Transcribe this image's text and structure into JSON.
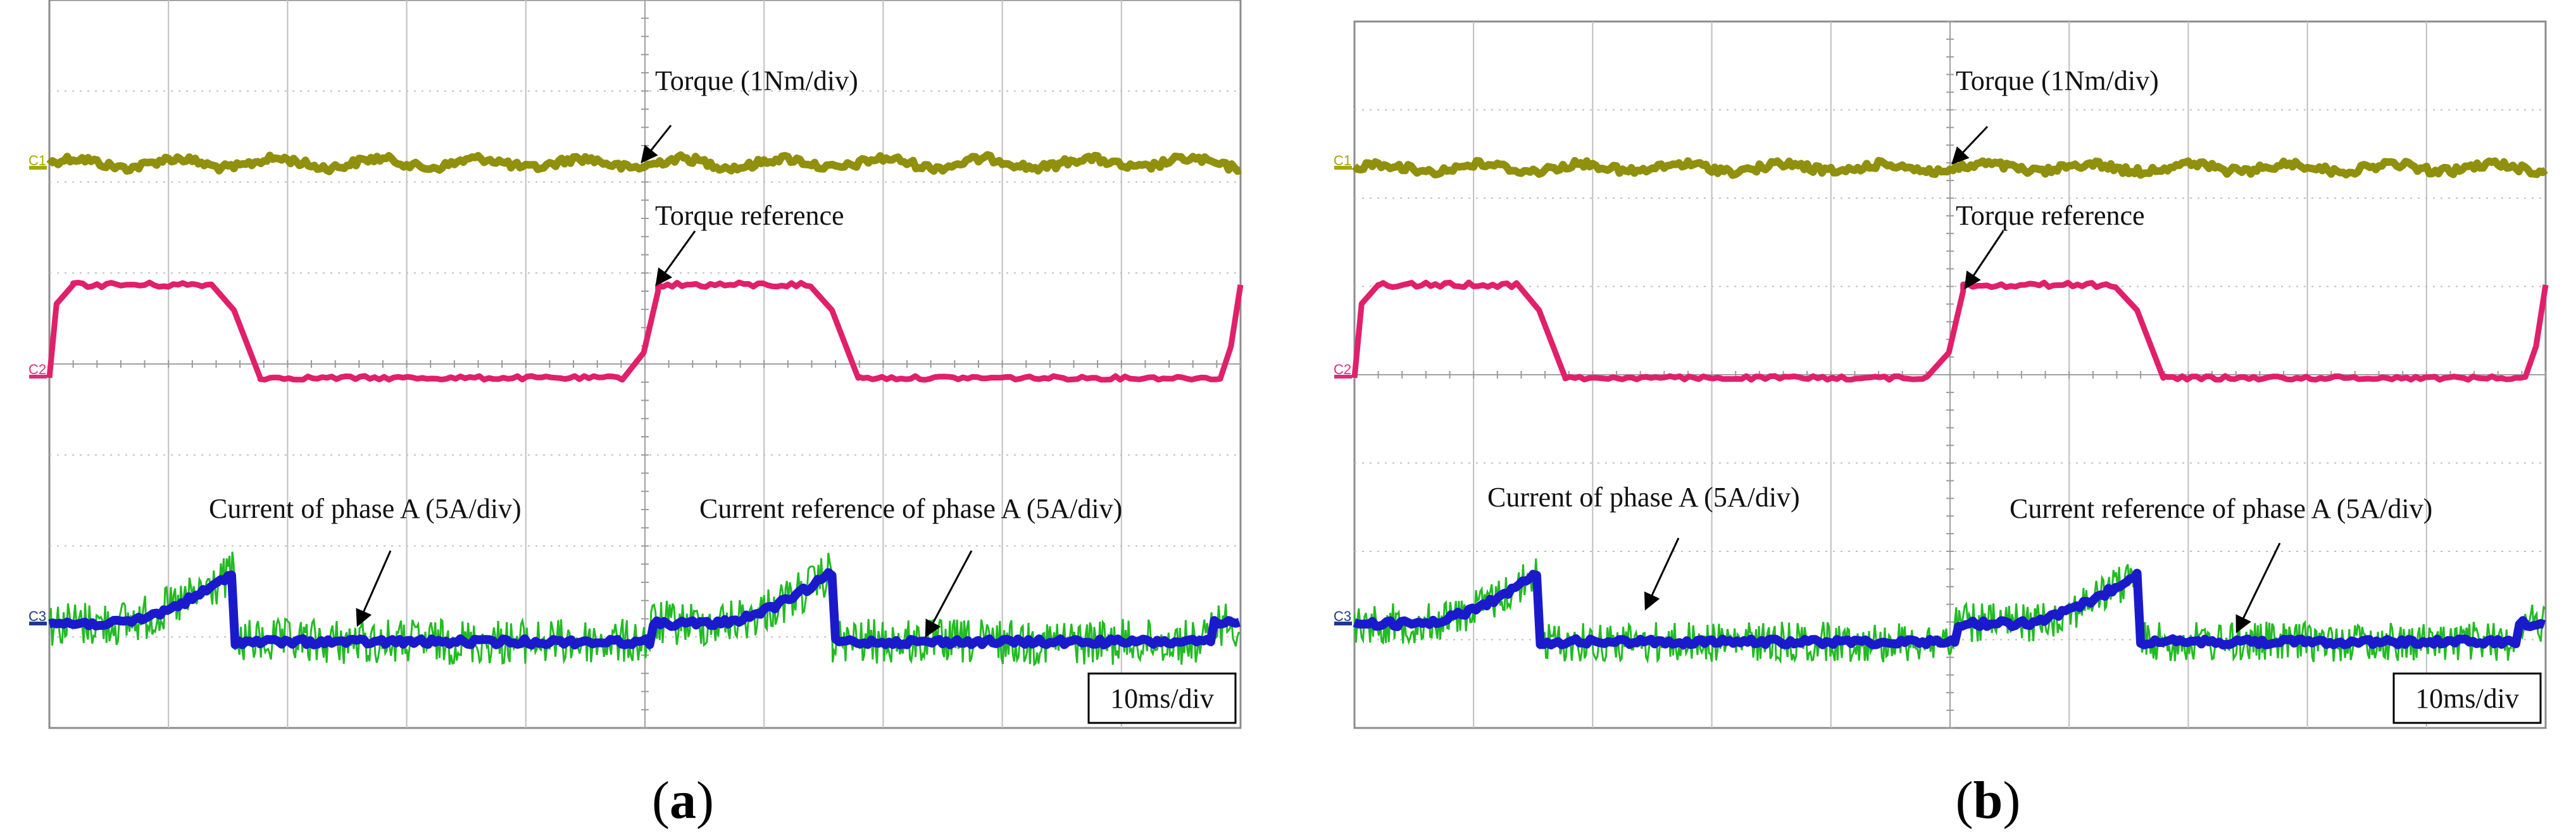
{
  "chart_data": [
    {
      "panel": "a",
      "type": "line",
      "title": "",
      "time_scale": "10ms/div",
      "x_range": [
        0,
        100
      ],
      "x_unit": "ms",
      "channels": [
        "C1",
        "C2",
        "C3"
      ],
      "series": [
        {
          "name": "Torque (1Nm/div)",
          "channel": "C1",
          "color": "#8a8a00",
          "level_div": 0.05,
          "ripple_div": 0.05
        },
        {
          "name": "Torque reference",
          "channel": "C2",
          "color": "#e0206a",
          "low_div": 0,
          "high_div": 1.0,
          "pulses_ms": [
            [
              0,
              15.5
            ],
            [
              50.5,
              65.7
            ]
          ],
          "rise_start_ms": [
            98.5
          ]
        },
        {
          "name": "Current of phase A (5A/div)",
          "channel": "C3",
          "color": "#22bb22",
          "noise_div": 0.25
        },
        {
          "name": "Current reference of phase A (5A/div)",
          "channel": "C3",
          "color": "#1a1acc",
          "base_div": -0.2,
          "active_div": 0.0,
          "peak_div": 0.55,
          "active_windows_ms": [
            [
              0,
              15.5
            ],
            [
              50.5,
              65.7
            ]
          ],
          "rise_start_ms": [
            97.5
          ]
        }
      ],
      "annotations": [
        {
          "text": "Torque (1Nm/div)",
          "target_series": "Torque (1Nm/div)"
        },
        {
          "text": "Torque reference",
          "target_series": "Torque reference"
        },
        {
          "text": "Current of phase A (5A/div)",
          "target_series": "Current of phase A (5A/div)"
        },
        {
          "text": "Current reference of phase A (5A/div)",
          "target_series": "Current reference of phase A (5A/div)"
        }
      ],
      "label": "(a)"
    },
    {
      "panel": "b",
      "type": "line",
      "title": "",
      "time_scale": "10ms/div",
      "x_range": [
        0,
        100
      ],
      "x_unit": "ms",
      "channels": [
        "C1",
        "C2",
        "C3"
      ],
      "series": [
        {
          "name": "Torque (1Nm/div)",
          "channel": "C1",
          "color": "#8a8a00",
          "level_div": 0.0,
          "ripple_div": 0.04
        },
        {
          "name": "Torque reference",
          "channel": "C2",
          "color": "#e0206a",
          "low_div": 0,
          "high_div": 1.0,
          "pulses_ms": [
            [
              0,
              15.5
            ],
            [
              50.5,
              65.7
            ]
          ],
          "rise_start_ms": [
            98.5
          ]
        },
        {
          "name": "Current of phase A (5A/div)",
          "channel": "C3",
          "color": "#22bb22",
          "noise_div": 0.22
        },
        {
          "name": "Current reference of phase A (5A/div)",
          "channel": "C3",
          "color": "#1a1acc",
          "base_div": -0.2,
          "active_div": 0.0,
          "peak_div": 0.55,
          "active_windows_ms": [
            [
              0,
              15.5
            ],
            [
              50.5,
              65.7
            ]
          ],
          "rise_start_ms": [
            97.5
          ]
        }
      ],
      "annotations": [
        {
          "text": "Torque (1Nm/div)",
          "target_series": "Torque (1Nm/div)"
        },
        {
          "text": "Torque reference",
          "target_series": "Torque reference"
        },
        {
          "text": "Current of phase A (5A/div)",
          "target_series": "Current of phase A (5A/div)"
        },
        {
          "text": "Current reference of phase A (5A/div)",
          "target_series": "Current reference of phase A (5A/div)"
        }
      ],
      "label": "(b)"
    }
  ]
}
